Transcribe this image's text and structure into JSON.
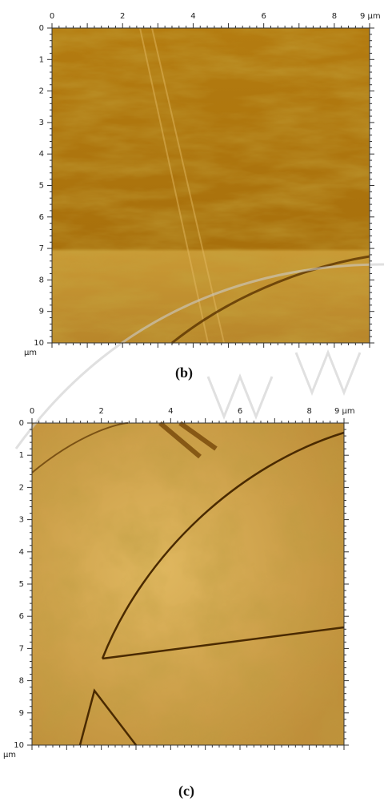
{
  "panels": [
    {
      "x_labels": [
        "0",
        "2",
        "4",
        "6",
        "8",
        "9 µm"
      ],
      "y_labels": [
        "0",
        "1",
        "2",
        "3",
        "4",
        "5",
        "6",
        "7",
        "8",
        "9",
        "10"
      ],
      "unit": "µm",
      "caption": "(b)"
    },
    {
      "x_labels": [
        "0",
        "2",
        "4",
        "6",
        "8",
        "9 µm"
      ],
      "y_labels": [
        "0",
        "1",
        "2",
        "3",
        "4",
        "5",
        "6",
        "7",
        "8",
        "9",
        "10"
      ],
      "unit": "µm",
      "caption": "(c)"
    }
  ]
}
